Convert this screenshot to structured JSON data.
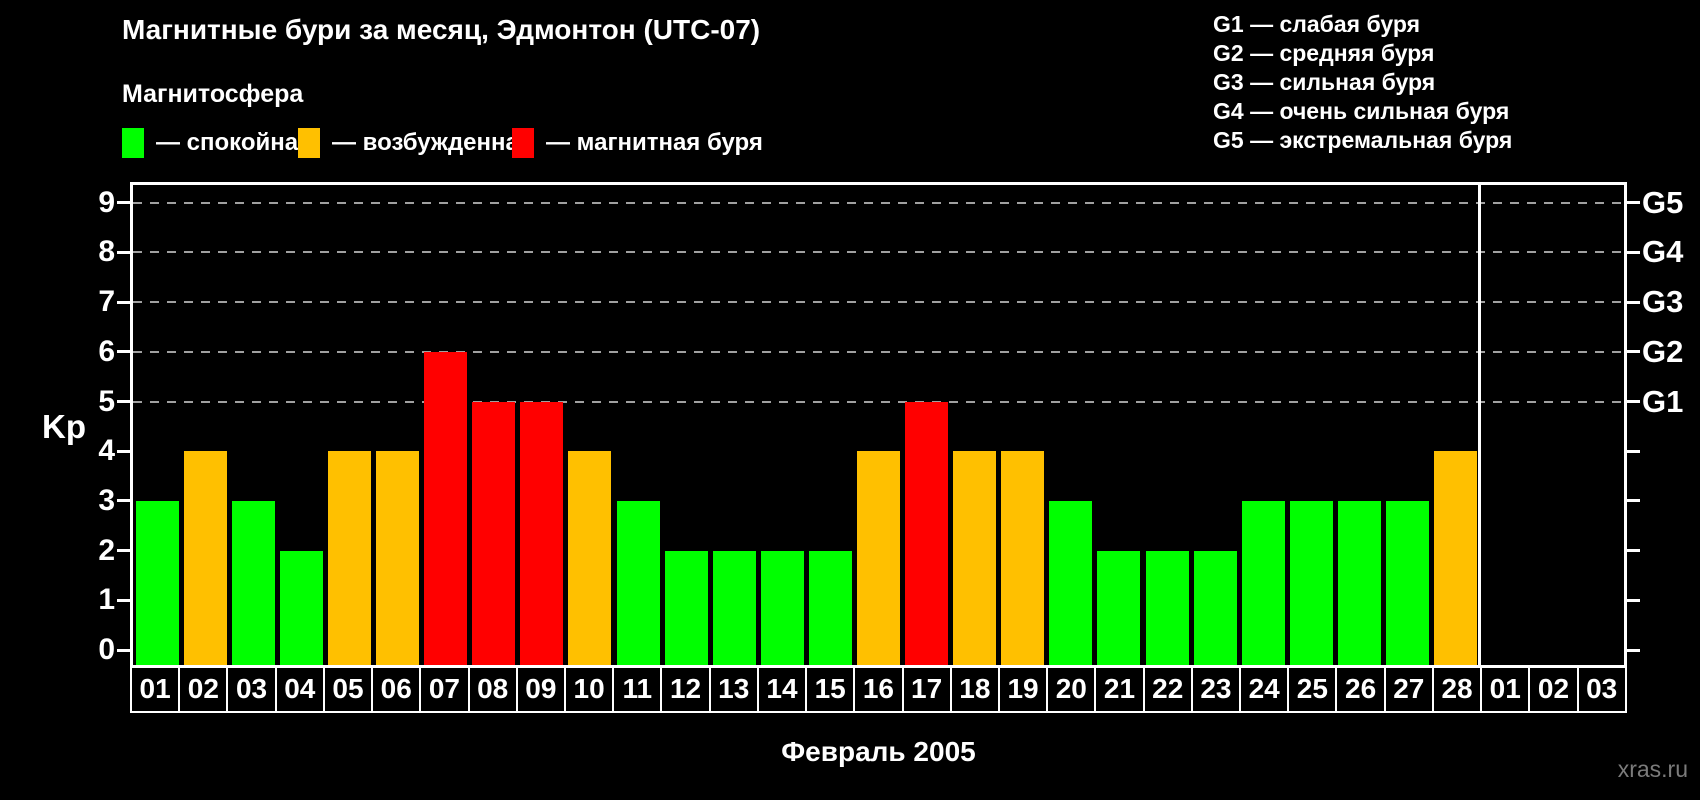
{
  "chart_data": {
    "type": "bar",
    "title": "Магнитные бури за месяц, Эдмонтон (UTC-07)",
    "legend_title": "Магнитосфера",
    "legend": [
      {
        "label": "— спокойная",
        "state": "quiet",
        "color": "#00ff00"
      },
      {
        "label": "— возбужденная",
        "state": "excited",
        "color": "#ffc000"
      },
      {
        "label": "— магнитная буря",
        "state": "storm",
        "color": "#ff0000"
      }
    ],
    "g_legend": [
      "G1 — слабая буря",
      "G2 — средняя буря",
      "G3 — сильная буря",
      "G4 — очень сильная буря",
      "G5 — экстремальная буря"
    ],
    "ylabel": "Kp",
    "xlabel": "Февраль 2005",
    "watermark": "xras.ru",
    "yticks": [
      0,
      1,
      2,
      3,
      4,
      5,
      6,
      7,
      8,
      9
    ],
    "ylim": [
      0,
      9
    ],
    "grid_kp_levels": [
      5,
      6,
      7,
      8,
      9
    ],
    "right_axis_labels": [
      {
        "label": "G1",
        "kp": 5
      },
      {
        "label": "G2",
        "kp": 6
      },
      {
        "label": "G3",
        "kp": 7
      },
      {
        "label": "G4",
        "kp": 8
      },
      {
        "label": "G5",
        "kp": 9
      }
    ],
    "days": [
      {
        "day": "01",
        "kp": 3,
        "state": "quiet"
      },
      {
        "day": "02",
        "kp": 4,
        "state": "excited"
      },
      {
        "day": "03",
        "kp": 3,
        "state": "quiet"
      },
      {
        "day": "04",
        "kp": 2,
        "state": "quiet"
      },
      {
        "day": "05",
        "kp": 4,
        "state": "excited"
      },
      {
        "day": "06",
        "kp": 4,
        "state": "excited"
      },
      {
        "day": "07",
        "kp": 6,
        "state": "storm"
      },
      {
        "day": "08",
        "kp": 5,
        "state": "storm"
      },
      {
        "day": "09",
        "kp": 5,
        "state": "storm"
      },
      {
        "day": "10",
        "kp": 4,
        "state": "excited"
      },
      {
        "day": "11",
        "kp": 3,
        "state": "quiet"
      },
      {
        "day": "12",
        "kp": 2,
        "state": "quiet"
      },
      {
        "day": "13",
        "kp": 2,
        "state": "quiet"
      },
      {
        "day": "14",
        "kp": 2,
        "state": "quiet"
      },
      {
        "day": "15",
        "kp": 2,
        "state": "quiet"
      },
      {
        "day": "16",
        "kp": 4,
        "state": "excited"
      },
      {
        "day": "17",
        "kp": 5,
        "state": "storm"
      },
      {
        "day": "18",
        "kp": 4,
        "state": "excited"
      },
      {
        "day": "19",
        "kp": 4,
        "state": "excited"
      },
      {
        "day": "20",
        "kp": 3,
        "state": "quiet"
      },
      {
        "day": "21",
        "kp": 2,
        "state": "quiet"
      },
      {
        "day": "22",
        "kp": 2,
        "state": "quiet"
      },
      {
        "day": "23",
        "kp": 2,
        "state": "quiet"
      },
      {
        "day": "24",
        "kp": 3,
        "state": "quiet"
      },
      {
        "day": "25",
        "kp": 3,
        "state": "quiet"
      },
      {
        "day": "26",
        "kp": 3,
        "state": "quiet"
      },
      {
        "day": "27",
        "kp": 3,
        "state": "quiet"
      },
      {
        "day": "28",
        "kp": 4,
        "state": "excited"
      }
    ],
    "next_month_days": [
      "01",
      "02",
      "03"
    ],
    "colors": {
      "quiet": "#00ff00",
      "excited": "#ffc000",
      "storm": "#ff0000",
      "grid": "#a0a0a0",
      "axis": "#ffffff",
      "background": "#000000",
      "watermark": "#7b7b7b"
    }
  }
}
